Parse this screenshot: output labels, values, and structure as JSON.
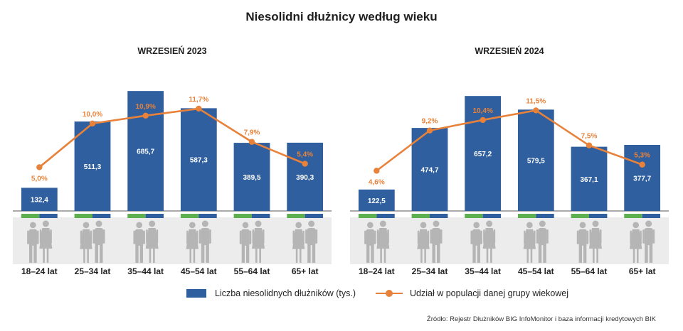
{
  "title": "Niesolidni dłużnicy według wieku",
  "colors": {
    "bar": "#2f5f9e",
    "line": "#e8823a",
    "strip_green": "#5daf4f",
    "strip_blue": "#2f5f9e",
    "silhouette": "#b5b5b5",
    "floor": "#ececec"
  },
  "chart_data": [
    {
      "type": "bar",
      "title": "WRZESIEŃ 2023",
      "categories": [
        "18–24 lat",
        "25–34 lat",
        "35–44 lat",
        "45–54 lat",
        "55–64 lat",
        "65+ lat"
      ],
      "series": [
        {
          "name": "Liczba niesolidnych dłużników (tys.)",
          "type": "bar",
          "values": [
            132.4,
            511.3,
            685.7,
            587.3,
            389.5,
            390.3
          ],
          "labels": [
            "132,4",
            "511,3",
            "685,7",
            "587,3",
            "389,5",
            "390,3"
          ]
        },
        {
          "name": "Udział w populacji danej grupy wiekowej",
          "type": "line",
          "values": [
            5.0,
            10.0,
            10.9,
            11.7,
            7.9,
            5.4
          ],
          "labels": [
            "5,0%",
            "10,0%",
            "10,9%",
            "11,7%",
            "7,9%",
            "5,4%"
          ]
        }
      ],
      "ylim": [
        0,
        800
      ],
      "y2lim": [
        0,
        16
      ],
      "grid": false
    },
    {
      "type": "bar",
      "title": "WRZESIEŃ 2024",
      "categories": [
        "18–24 lat",
        "25–34 lat",
        "35–44 lat",
        "45–54 lat",
        "55–64 lat",
        "65+ lat"
      ],
      "series": [
        {
          "name": "Liczba niesolidnych dłużników (tys.)",
          "type": "bar",
          "values": [
            122.5,
            474.7,
            657.2,
            579.5,
            367.1,
            377.7
          ],
          "labels": [
            "122,5",
            "474,7",
            "657,2",
            "579,5",
            "367,1",
            "377,7"
          ]
        },
        {
          "name": "Udział w populacji danej grupy wiekowej",
          "type": "line",
          "values": [
            4.6,
            9.2,
            10.4,
            11.5,
            7.5,
            5.3
          ],
          "labels": [
            "4,6%",
            "9,2%",
            "10,4%",
            "11,5%",
            "7,5%",
            "5,3%"
          ]
        }
      ],
      "ylim": [
        0,
        800
      ],
      "y2lim": [
        0,
        16
      ],
      "grid": false
    }
  ],
  "legend": {
    "bar_label": "Liczba niesolidnych dłużników (tys.)",
    "line_label": "Udział w populacji danej grupy wiekowej",
    "position": "bottom"
  },
  "source": "Źródło: Rejestr Dłużników BIG InfoMonitor i baza informacji kredytowych BIK"
}
